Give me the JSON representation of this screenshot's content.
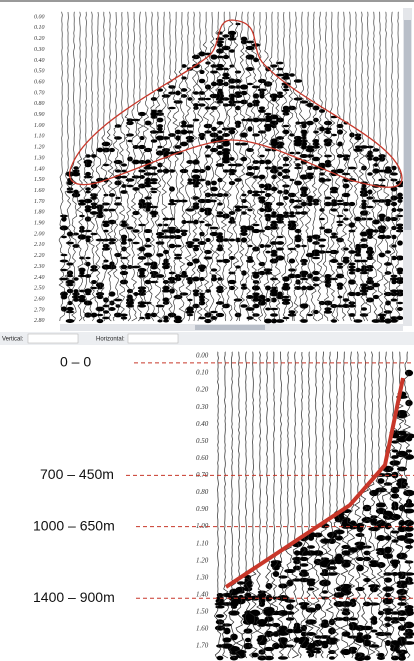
{
  "top_panel": {
    "time_labels": [
      "0.00",
      "0.10",
      "0.20",
      "0.30",
      "0.40",
      "0.50",
      "0.60",
      "0.70",
      "0.80",
      "0.90",
      "1.00",
      "1.10",
      "1.20",
      "1.30",
      "1.40",
      "1.50",
      "1.60",
      "1.70",
      "1.80",
      "1.90",
      "2.00",
      "2.10",
      "2.20",
      "2.30",
      "2.40",
      "2.50",
      "2.60",
      "2.70",
      "2.80"
    ]
  },
  "toolbar": {
    "vertical_label": "Vertical:",
    "horizontal_label": "Horizontal:"
  },
  "bottom_panel": {
    "time_labels": [
      "0.00",
      "0.10",
      "0.20",
      "0.30",
      "0.40",
      "0.50",
      "0.60",
      "0.70",
      "0.80",
      "0.90",
      "1.00",
      "1.10",
      "1.20",
      "1.30",
      "1.40",
      "1.50",
      "1.60",
      "1.70"
    ],
    "annotations": [
      "0 – 0",
      "700 – 450m",
      "1000 – 650m",
      "1400 – 900m"
    ]
  }
}
